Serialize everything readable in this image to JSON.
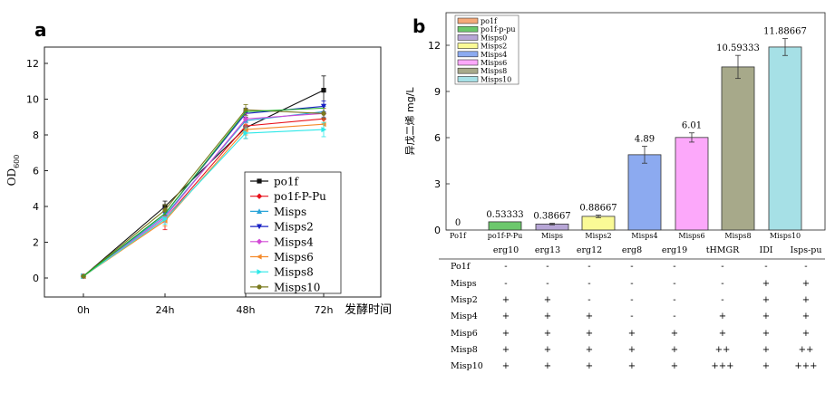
{
  "chart_data": [
    {
      "panel_label": "a",
      "type": "line",
      "x": [
        "0h",
        "24h",
        "48h",
        "72h"
      ],
      "xlabel": "发酵时间",
      "ylabel_main": "OD",
      "ylabel_sub": "600",
      "ylim": [
        -1,
        13
      ],
      "yticks": [
        0,
        2,
        4,
        6,
        8,
        10,
        12
      ],
      "legend_position": "lower-right",
      "series": [
        {
          "name": "po1f",
          "color": "#111111",
          "marker": "square",
          "values": [
            0.1,
            4.0,
            8.4,
            10.5
          ],
          "err": [
            0,
            0.3,
            0.6,
            0.8
          ]
        },
        {
          "name": "po1f-P-Pu",
          "color": "#e8101a",
          "marker": "diamond",
          "values": [
            0.1,
            3.3,
            8.5,
            8.9
          ],
          "err": [
            0,
            0.6,
            0.3,
            0.3
          ]
        },
        {
          "name": "Misps",
          "color": "#2aa4d8",
          "marker": "triangle-up",
          "values": [
            0.1,
            3.5,
            8.8,
            9.3
          ],
          "err": [
            0,
            0.3,
            0.3,
            0.3
          ]
        },
        {
          "name": "Misps2",
          "color": "#1a22c4",
          "marker": "triangle-down",
          "values": [
            0.1,
            3.6,
            9.2,
            9.6
          ],
          "err": [
            0,
            0.3,
            0.3,
            0.3
          ]
        },
        {
          "name": "Misps4",
          "color": "#d24ad6",
          "marker": "diamond",
          "values": [
            0.1,
            3.4,
            8.9,
            9.2
          ],
          "err": [
            0,
            0.3,
            0.3,
            0.3
          ]
        },
        {
          "name": "Misps6",
          "color": "#f58a2a",
          "marker": "triangle-left",
          "values": [
            0.1,
            3.2,
            8.3,
            8.6
          ],
          "err": [
            0,
            0.3,
            0.3,
            0.3
          ]
        },
        {
          "name": "Misps8",
          "color": "#2ee8e8",
          "marker": "triangle-right",
          "values": [
            0.1,
            3.3,
            8.1,
            8.3
          ],
          "err": [
            0,
            0.3,
            0.3,
            0.4
          ]
        },
        {
          "name": "Misps10",
          "color": "#7a7a1e",
          "marker": "hexagon",
          "values": [
            0.1,
            3.8,
            9.4,
            9.2
          ],
          "err": [
            0,
            0.3,
            0.3,
            0.3
          ]
        },
        {
          "name": "green",
          "color": "#22b22a",
          "marker": "none",
          "values": [
            0.1,
            3.6,
            9.3,
            9.5
          ],
          "err": [
            0,
            0,
            0,
            0
          ],
          "in_legend": false
        }
      ]
    },
    {
      "panel_label": "b",
      "type": "bar",
      "ylabel": "异戊二烯 mg/L",
      "ylim": [
        0,
        13.5
      ],
      "yticks": [
        0,
        3,
        6,
        9,
        12
      ],
      "legend_position": "top-left",
      "categories": [
        "Po1f",
        "po1f-P-Pu",
        "Misps",
        "Misps2",
        "Misps4",
        "Misps6",
        "Misps8",
        "Misps10"
      ],
      "legend_labels": [
        "po1f",
        "po1f-p-pu",
        "Misps0",
        "Misps2",
        "Misps4",
        "Misps6",
        "Misps8",
        "Misps10"
      ],
      "values": [
        0,
        0.53333,
        0.38667,
        0.88667,
        4.89,
        6.01,
        10.59333,
        11.88667
      ],
      "value_labels": [
        "0",
        "0.53333",
        "0.38667",
        "0.88667",
        "4.89",
        "6.01",
        "10.59333",
        "11.88667"
      ],
      "err": [
        0,
        0,
        0.05,
        0.08,
        0.55,
        0.3,
        0.75,
        0.55
      ],
      "colors": [
        "#f5a97a",
        "#6cc86c",
        "#b7a6d6",
        "#fafa96",
        "#8caaf0",
        "#fca8fa",
        "#a7a98a",
        "#a6e0e6"
      ]
    },
    {
      "type": "table",
      "columns": [
        "erg10",
        "erg13",
        "erg12",
        "erg8",
        "erg19",
        "tHMGR",
        "IDI",
        "Isps-pu"
      ],
      "rows": [
        {
          "label": "Po1f",
          "cells": [
            "-",
            "-",
            "-",
            "-",
            "-",
            "-",
            "-",
            "-"
          ]
        },
        {
          "label": "Misps",
          "cells": [
            "-",
            "-",
            "-",
            "-",
            "-",
            "-",
            "+",
            "+"
          ]
        },
        {
          "label": "Misp2",
          "cells": [
            "+",
            "+",
            "-",
            "-",
            "-",
            "-",
            "+",
            "+"
          ]
        },
        {
          "label": "Misp4",
          "cells": [
            "+",
            "+",
            "+",
            "-",
            "-",
            "+",
            "+",
            "+"
          ]
        },
        {
          "label": "Misp6",
          "cells": [
            "+",
            "+",
            "+",
            "+",
            "+",
            "+",
            "+",
            "+"
          ]
        },
        {
          "label": "Misp8",
          "cells": [
            "+",
            "+",
            "+",
            "+",
            "+",
            "++",
            "+",
            "++"
          ]
        },
        {
          "label": "Misp10",
          "cells": [
            "+",
            "+",
            "+",
            "+",
            "+",
            "+++",
            "+",
            "+++"
          ]
        }
      ]
    }
  ]
}
